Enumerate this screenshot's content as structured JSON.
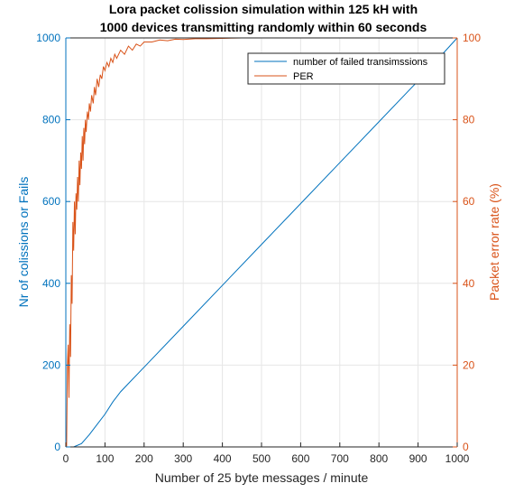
{
  "chart_data": {
    "type": "line",
    "title": [
      "Lora packet colission simulation within    125 kH with",
      "1000 devices transmitting randomly within 60 seconds"
    ],
    "xlabel": "Number of 25 byte  messages / minute",
    "ylabel_left": "Nr of colissions or Fails",
    "ylabel_right": "Packet error rate (%)",
    "xlim": [
      0,
      1000
    ],
    "ylim_left": [
      0,
      1000
    ],
    "ylim_right": [
      0,
      100
    ],
    "x_ticks": [
      "0",
      "100",
      "200",
      "300",
      "400",
      "500",
      "600",
      "700",
      "800",
      "900",
      "1000"
    ],
    "y_left_ticks": [
      "0",
      "200",
      "400",
      "600",
      "800",
      "1000"
    ],
    "y_right_ticks": [
      "0",
      "20",
      "40",
      "60",
      "80",
      "100"
    ],
    "grid": true,
    "legend_position": "top-right",
    "colors": {
      "failed": "#0072BD",
      "per": "#D95319",
      "left_axis": "#0072BD",
      "right_axis": "#D95319"
    },
    "series": [
      {
        "name": "number of failed transimssions",
        "axis": "left",
        "x": [
          0,
          10,
          20,
          40,
          60,
          80,
          100,
          120,
          140,
          160,
          200,
          300,
          400,
          500,
          600,
          700,
          800,
          900,
          1000
        ],
        "values": [
          0,
          0,
          0,
          8,
          30,
          55,
          80,
          110,
          135,
          155,
          195,
          295,
          395,
          495,
          595,
          695,
          795,
          895,
          1000
        ]
      },
      {
        "name": "PER",
        "axis": "right",
        "x": [
          0,
          2,
          4,
          6,
          8,
          10,
          12,
          14,
          16,
          18,
          20,
          22,
          24,
          26,
          28,
          30,
          32,
          34,
          36,
          38,
          40,
          42,
          44,
          46,
          48,
          50,
          52,
          55,
          58,
          60,
          63,
          66,
          70,
          73,
          76,
          80,
          84,
          88,
          92,
          96,
          100,
          105,
          110,
          115,
          120,
          125,
          130,
          140,
          150,
          160,
          170,
          180,
          190,
          200,
          220,
          240,
          260,
          280,
          300,
          330,
          360,
          400,
          450,
          500,
          600,
          700,
          800,
          900,
          1000
        ],
        "values": [
          0,
          0,
          20,
          25,
          12,
          30,
          22,
          42,
          35,
          55,
          48,
          60,
          52,
          62,
          58,
          66,
          60,
          70,
          64,
          72,
          68,
          76,
          70,
          78,
          74,
          80,
          77,
          82,
          80,
          84,
          82,
          86,
          84,
          88,
          86,
          90,
          88,
          91,
          90,
          93,
          92,
          94,
          93,
          95,
          94,
          96,
          95,
          97,
          96,
          98,
          97,
          98.5,
          98,
          99,
          99,
          99.5,
          99.3,
          99.7,
          99.6,
          99.8,
          99.8,
          99.9,
          100,
          100,
          100,
          100,
          100,
          100,
          100
        ]
      }
    ]
  }
}
